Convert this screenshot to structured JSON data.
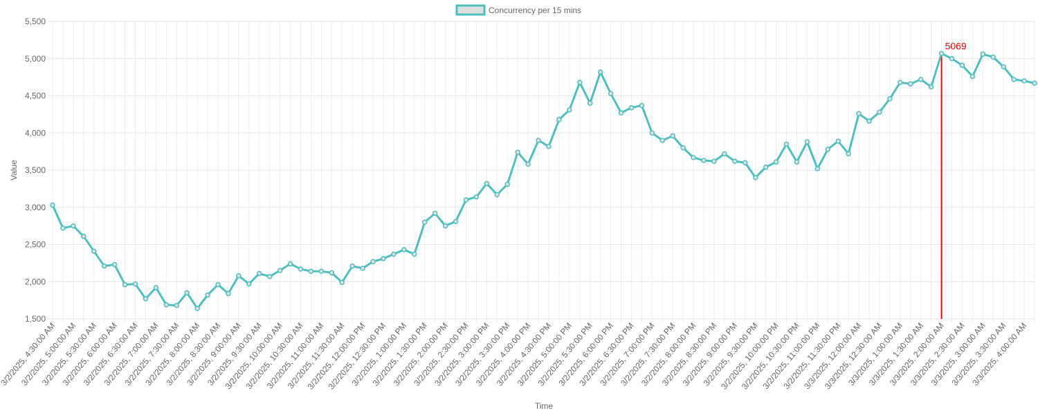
{
  "chart_data": {
    "type": "line",
    "xlabel": "Time",
    "ylabel": "Value",
    "ylim": [
      1500,
      5500
    ],
    "yticks": [
      1500,
      2000,
      2500,
      3000,
      3500,
      4000,
      4500,
      5000,
      5500
    ],
    "ytick_labels": [
      "1,500",
      "2,000",
      "2,500",
      "3,000",
      "3,500",
      "4,000",
      "4,500",
      "5,000",
      "5,500"
    ],
    "grid": true,
    "legend_position": "top-center",
    "series": [
      {
        "name": "Concurrency per 15 mins",
        "color": "#4bc0c0",
        "fill": "#e0e0e0",
        "values": [
          3030,
          2720,
          2750,
          2610,
          2410,
          2210,
          2230,
          1960,
          1970,
          1770,
          1920,
          1690,
          1680,
          1850,
          1640,
          1820,
          1960,
          1840,
          2080,
          1970,
          2110,
          2070,
          2150,
          2240,
          2170,
          2140,
          2140,
          2120,
          1990,
          2210,
          2180,
          2270,
          2310,
          2370,
          2430,
          2370,
          2800,
          2920,
          2750,
          2810,
          3100,
          3140,
          3320,
          3170,
          3310,
          3740,
          3580,
          3900,
          3820,
          4180,
          4310,
          4680,
          4400,
          4820,
          4530,
          4270,
          4340,
          4370,
          4000,
          3900,
          3960,
          3800,
          3670,
          3630,
          3620,
          3720,
          3620,
          3600,
          3400,
          3540,
          3610,
          3850,
          3610,
          3880,
          3520,
          3780,
          3890,
          3720,
          4260,
          4160,
          4280,
          4460,
          4680,
          4660,
          4720,
          4620,
          5069,
          5000,
          4910,
          4760,
          5060,
          5020,
          4890,
          4720,
          4700,
          4670
        ]
      }
    ],
    "x_labels": [
      "3/2/2025, 4:30:00 AM",
      "3/2/2025, 5:00:00 AM",
      "3/2/2025, 5:30:00 AM",
      "3/2/2025, 6:00:00 AM",
      "3/2/2025, 6:30:00 AM",
      "3/2/2025, 7:00:00 AM",
      "3/2/2025, 7:30:00 AM",
      "3/2/2025, 8:00:00 AM",
      "3/2/2025, 8:30:00 AM",
      "3/2/2025, 9:00:00 AM",
      "3/2/2025, 9:30:00 AM",
      "3/2/2025, 10:00:00 AM",
      "3/2/2025, 10:30:00 AM",
      "3/2/2025, 11:00:00 AM",
      "3/2/2025, 11:30:00 AM",
      "3/2/2025, 12:00:00 PM",
      "3/2/2025, 12:30:00 PM",
      "3/2/2025, 1:00:00 PM",
      "3/2/2025, 1:30:00 PM",
      "3/2/2025, 2:00:00 PM",
      "3/2/2025, 2:30:00 PM",
      "3/2/2025, 3:00:00 PM",
      "3/2/2025, 3:30:00 PM",
      "3/2/2025, 4:00:00 PM",
      "3/2/2025, 4:30:00 PM",
      "3/2/2025, 5:00:00 PM",
      "3/2/2025, 5:30:00 PM",
      "3/2/2025, 6:00:00 PM",
      "3/2/2025, 6:30:00 PM",
      "3/2/2025, 7:00:00 PM",
      "3/2/2025, 7:30:00 PM",
      "3/2/2025, 8:00:00 PM",
      "3/2/2025, 8:30:00 PM",
      "3/2/2025, 9:00:00 PM",
      "3/2/2025, 9:30:00 PM",
      "3/2/2025, 10:00:00 PM",
      "3/2/2025, 10:30:00 PM",
      "3/2/2025, 11:00:00 PM",
      "3/2/2025, 11:30:00 PM",
      "3/3/2025, 12:00:00 AM",
      "3/3/2025, 12:30:00 AM",
      "3/3/2025, 1:00:00 AM",
      "3/3/2025, 1:30:00 AM",
      "3/3/2025, 2:00:00 AM",
      "3/3/2025, 2:30:00 AM",
      "3/3/2025, 3:00:00 AM",
      "3/3/2025, 3:30:00 AM",
      "3/3/2025, 4:00:00 AM"
    ],
    "annotation": {
      "label": "5069",
      "point_index": 86,
      "color": "#ff0000"
    }
  }
}
